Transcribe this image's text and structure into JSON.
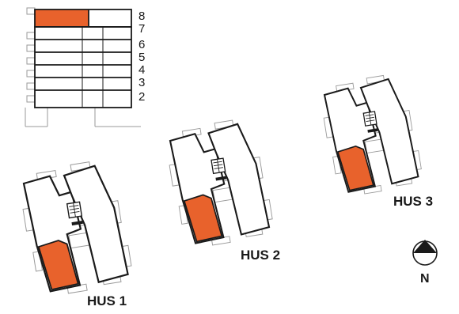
{
  "colors": {
    "highlight": "#e8622c",
    "outline": "#1a1a1a",
    "thin_outline": "#9a9a9a",
    "background": "#ffffff"
  },
  "floor_stack": {
    "floors": [
      "8",
      "7",
      "6",
      "5",
      "4",
      "3",
      "2"
    ],
    "highlighted_floor": "8"
  },
  "houses": [
    {
      "label": "HUS 1",
      "highlighted_unit": true
    },
    {
      "label": "HUS 2",
      "highlighted_unit": true
    },
    {
      "label": "HUS 3",
      "highlighted_unit": true
    }
  ],
  "compass": {
    "label": "N",
    "icon": "north-arrow-icon"
  }
}
